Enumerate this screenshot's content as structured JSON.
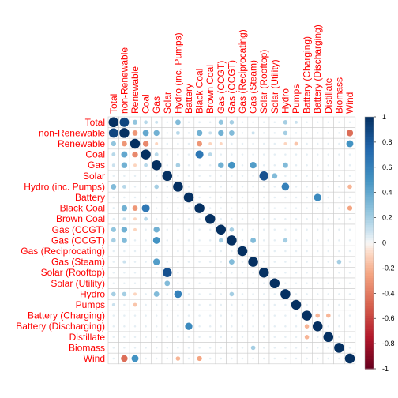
{
  "chart_data": {
    "type": "heatmap",
    "variables": [
      "Total",
      "non-Renewable",
      "Renewable",
      "Coal",
      "Gas",
      "Solar",
      "Hydro (inc. Pumps)",
      "Battery",
      "Black Coal",
      "Brown Coal",
      "Gas (CCGT)",
      "Gas (OCGT)",
      "Gas (Reciprocating)",
      "Gas (Steam)",
      "Solar (Rooftop)",
      "Solar (Utility)",
      "Hydro",
      "Pumps",
      "Battery (Charging)",
      "Battery (Discharging)",
      "Distillate",
      "Biomass",
      "Wind"
    ],
    "correlations": [
      {
        "row": "Total",
        "col": "non-Renewable",
        "value": 0.9
      },
      {
        "row": "Total",
        "col": "Renewable",
        "value": 0.25
      },
      {
        "row": "Total",
        "col": "Coal",
        "value": 0.15
      },
      {
        "row": "Total",
        "col": "Gas",
        "value": 0.1
      },
      {
        "row": "Total",
        "col": "Hydro (inc. Pumps)",
        "value": 0.3
      },
      {
        "row": "Total",
        "col": "Black Coal",
        "value": 0.05
      },
      {
        "row": "Total",
        "col": "Gas (CCGT)",
        "value": 0.25
      },
      {
        "row": "Total",
        "col": "Gas (OCGT)",
        "value": 0.2
      },
      {
        "row": "Total",
        "col": "Hydro",
        "value": 0.2
      },
      {
        "row": "Total",
        "col": "Pumps",
        "value": 0.1
      },
      {
        "row": "non-Renewable",
        "col": "Renewable",
        "value": -0.3
      },
      {
        "row": "non-Renewable",
        "col": "Coal",
        "value": 0.4
      },
      {
        "row": "non-Renewable",
        "col": "Gas",
        "value": 0.35
      },
      {
        "row": "non-Renewable",
        "col": "Hydro (inc. Pumps)",
        "value": 0.15
      },
      {
        "row": "non-Renewable",
        "col": "Black Coal",
        "value": 0.35
      },
      {
        "row": "non-Renewable",
        "col": "Brown Coal",
        "value": 0.1
      },
      {
        "row": "non-Renewable",
        "col": "Gas (CCGT)",
        "value": 0.35
      },
      {
        "row": "non-Renewable",
        "col": "Gas (OCGT)",
        "value": 0.3
      },
      {
        "row": "non-Renewable",
        "col": "Gas (Steam)",
        "value": 0.1
      },
      {
        "row": "non-Renewable",
        "col": "Hydro",
        "value": 0.2
      },
      {
        "row": "non-Renewable",
        "col": "Wind",
        "value": -0.45
      },
      {
        "row": "Renewable",
        "col": "Coal",
        "value": -0.35
      },
      {
        "row": "Renewable",
        "col": "Gas",
        "value": -0.1
      },
      {
        "row": "Renewable",
        "col": "Black Coal",
        "value": -0.3
      },
      {
        "row": "Renewable",
        "col": "Brown Coal",
        "value": -0.1
      },
      {
        "row": "Renewable",
        "col": "Gas (CCGT)",
        "value": -0.1
      },
      {
        "row": "Renewable",
        "col": "Hydro",
        "value": -0.1
      },
      {
        "row": "Renewable",
        "col": "Pumps",
        "value": -0.15
      },
      {
        "row": "Renewable",
        "col": "Wind",
        "value": 0.5
      },
      {
        "row": "Coal",
        "col": "Gas",
        "value": 0.15
      },
      {
        "row": "Coal",
        "col": "Black Coal",
        "value": 0.65
      },
      {
        "row": "Coal",
        "col": "Brown Coal",
        "value": 0.15
      },
      {
        "row": "Gas",
        "col": "Hydro (inc. Pumps)",
        "value": 0.2
      },
      {
        "row": "Gas",
        "col": "Gas (CCGT)",
        "value": 0.35
      },
      {
        "row": "Gas",
        "col": "Gas (OCGT)",
        "value": 0.5
      },
      {
        "row": "Gas",
        "col": "Gas (Steam)",
        "value": 0.45
      },
      {
        "row": "Gas",
        "col": "Hydro",
        "value": 0.3
      },
      {
        "row": "Solar",
        "col": "Solar (Rooftop)",
        "value": 0.85
      },
      {
        "row": "Solar",
        "col": "Solar (Utility)",
        "value": 0.3
      },
      {
        "row": "Hydro (inc. Pumps)",
        "col": "Hydro",
        "value": 0.6
      },
      {
        "row": "Hydro (inc. Pumps)",
        "col": "Wind",
        "value": -0.2
      },
      {
        "row": "Battery",
        "col": "Battery (Discharging)",
        "value": 0.55
      },
      {
        "row": "Black Coal",
        "col": "Wind",
        "value": -0.25
      },
      {
        "row": "Gas (CCGT)",
        "col": "Gas (OCGT)",
        "value": 0.2
      },
      {
        "row": "Gas (OCGT)",
        "col": "Gas (Steam)",
        "value": 0.3
      },
      {
        "row": "Gas (OCGT)",
        "col": "Hydro",
        "value": 0.2
      },
      {
        "row": "Gas (Steam)",
        "col": "Biomass",
        "value": 0.2
      },
      {
        "row": "Battery (Charging)",
        "col": "Battery (Discharging)",
        "value": -0.2
      },
      {
        "row": "Battery (Charging)",
        "col": "Distillate",
        "value": -0.2
      }
    ],
    "colorbar": {
      "ticks": [
        1,
        0.8,
        0.6,
        0.4,
        0.2,
        0,
        -0.2,
        -0.4,
        -0.6,
        -0.8,
        -1
      ],
      "labels": [
        "1",
        "0.8",
        "0.6",
        "0.4",
        "0.2",
        "0",
        "-0.2",
        "-0.4",
        "-0.6",
        "-0.8",
        "-1"
      ]
    },
    "colors": {
      "positive": "#053061",
      "mid": "#f7f7f7",
      "negative": "#67001f",
      "label": "#ff0000",
      "grid": "#cccccc"
    },
    "glyph": "circle",
    "matrix_layout": "full"
  }
}
